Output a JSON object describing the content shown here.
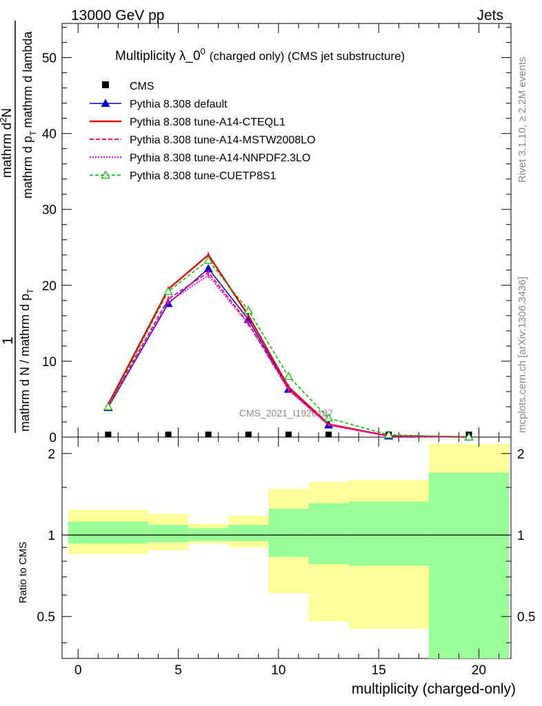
{
  "header": {
    "energy": "13000 GeV pp",
    "process": "Jets"
  },
  "side_labels": {
    "rivet": "Rivet 3.1.10, ≥ 2.2M events",
    "mcplots": "mcplots.cern.ch [arXiv:1306.3436]"
  },
  "watermark": "CMS_2021_I1920187",
  "chart_data": [
    {
      "type": "line",
      "title_main": "Multiplicity λ_0",
      "title_sup": "0",
      "title_sub": "(charged only) (CMS jet substructure)",
      "ylabel_parts": {
        "lead": "1",
        "num_a": "mathrm d",
        "num_b": "N",
        "num_sup": "2",
        "den": "mathrm d N / mathrm d p",
        "den_sub": "T",
        "den_mid": "mathrm d p",
        "den_sub2": "T",
        "den_end": "mathrm d lambda"
      },
      "xlabel": "multiplicity (charged-only)",
      "xlim": [
        -0.8,
        21.6
      ],
      "ylim": [
        0,
        54.5
      ],
      "yticks": [
        0,
        10,
        20,
        30,
        40,
        50
      ],
      "bin_edges": [
        -0.5,
        3.5,
        5.5,
        7.5,
        9.5,
        11.5,
        13.5,
        17.5,
        21.5
      ],
      "x": [
        1.5,
        4.5,
        6.5,
        8.5,
        10.5,
        12.5,
        15.5,
        19.5
      ],
      "legend": [
        "CMS",
        "Pythia 8.308 default",
        "Pythia 8.308 tune-A14-CTEQL1",
        "Pythia 8.308 tune-A14-MSTW2008LO",
        "Pythia 8.308 tune-A14-NNPDF2.3LO",
        "Pythia 8.308 tune-CUETP8S1"
      ],
      "series": [
        {
          "name": "CMS",
          "color": "#000000",
          "style": "data",
          "values": [
            0,
            0,
            0,
            0,
            0,
            0,
            0,
            0
          ]
        },
        {
          "name": "Pythia 8.308 default",
          "color": "#0000cc",
          "style": "solid-tri",
          "values": [
            3.9,
            17.6,
            22.2,
            15.5,
            6.3,
            1.6,
            0.15,
            0.02
          ]
        },
        {
          "name": "Pythia 8.308 tune-A14-CTEQL1",
          "color": "#ee0000",
          "style": "solid-thick",
          "values": [
            4.3,
            19.5,
            24.0,
            16.0,
            6.6,
            1.7,
            0.15,
            0.02
          ]
        },
        {
          "name": "Pythia 8.308 tune-A14-MSTW2008LO",
          "color": "#ff0080",
          "style": "dashed",
          "values": [
            4.1,
            18.2,
            21.7,
            15.0,
            6.3,
            1.6,
            0.14,
            0.02
          ]
        },
        {
          "name": "Pythia 8.308 tune-A14-NNPDF2.3LO",
          "color": "#ee00cc",
          "style": "dotted",
          "values": [
            4.0,
            17.8,
            21.3,
            14.9,
            6.2,
            1.6,
            0.14,
            0.02
          ]
        },
        {
          "name": "Pythia 8.308 tune-CUETP8S1",
          "color": "#00bb00",
          "style": "dashed-tri",
          "values": [
            4.0,
            19.2,
            23.3,
            16.7,
            8.0,
            2.5,
            0.3,
            0.03
          ]
        }
      ]
    },
    {
      "type": "ratio",
      "ylabel": "Ratio to CMS",
      "xlabel": "multiplicity (charged-only)",
      "xlim": [
        -0.8,
        21.6
      ],
      "ylim": [
        0.35,
        2.3
      ],
      "yticks": [
        0.5,
        1,
        2
      ],
      "ytick_labels": [
        "0.5",
        "1",
        "2"
      ],
      "xticks": [
        0,
        5,
        10,
        15,
        20
      ],
      "bin_edges": [
        -0.5,
        3.5,
        5.5,
        7.5,
        9.5,
        11.5,
        13.5,
        17.5,
        21.5
      ],
      "yellow_band": {
        "color": "#ffff99",
        "lo": [
          0.85,
          0.88,
          0.93,
          0.9,
          0.61,
          0.48,
          0.45,
          0.35
        ],
        "hi": [
          1.24,
          1.2,
          1.1,
          1.18,
          1.48,
          1.57,
          1.6,
          2.17
        ]
      },
      "green_band": {
        "color": "#99ff99",
        "lo": [
          0.93,
          0.94,
          0.95,
          0.95,
          0.83,
          0.78,
          0.77,
          0.35
        ],
        "hi": [
          1.12,
          1.09,
          1.06,
          1.09,
          1.25,
          1.31,
          1.33,
          1.7
        ]
      },
      "reference": 1
    }
  ]
}
